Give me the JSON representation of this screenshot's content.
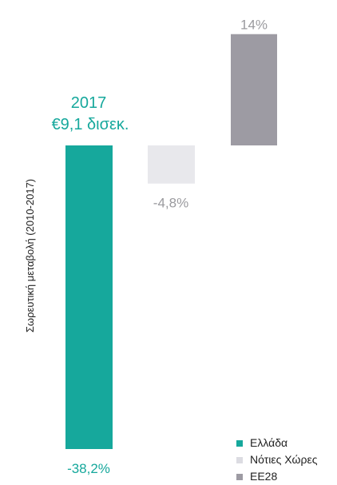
{
  "chart_data": {
    "type": "bar",
    "ylabel": "Σωρευτική μεταβολή (2010-2017)",
    "ylim": [
      -38.2,
      14
    ],
    "series": [
      {
        "name": "Ελλάδα",
        "value": -38.2,
        "label": "-38,2%",
        "color": "#16a89c"
      },
      {
        "name": "Νότιες Χώρες",
        "value": -4.8,
        "label": "-4,8%",
        "color": "#e8e8ec"
      },
      {
        "name": "ΕΕ28",
        "value": 14,
        "label": "14%",
        "color": "#9d9ba3"
      }
    ],
    "annotation": {
      "line1": "2017",
      "line2": "€9,1 δισεκ.",
      "color": "#16a89c"
    },
    "legend_position": "bottom-right"
  }
}
